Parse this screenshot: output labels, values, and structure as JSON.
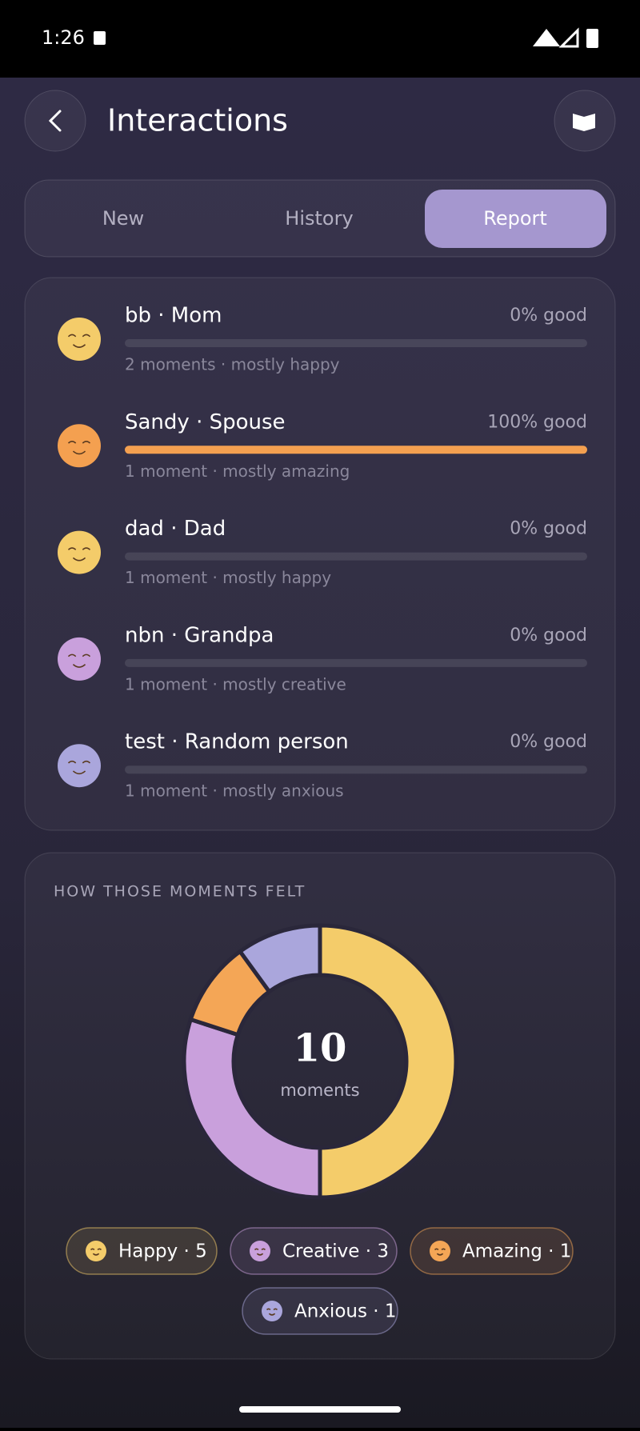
{
  "status_bar": {
    "time": "1:26"
  },
  "header": {
    "title": "Interactions"
  },
  "tabs": [
    "New",
    "History",
    "Report"
  ],
  "rows": [
    {
      "title": "bb · Mom",
      "good": 0,
      "good_label": "0% good",
      "subtitle": "2 moments · mostly happy",
      "color": "#f4cc6a"
    },
    {
      "title": "Sandy · Spouse",
      "good": 100,
      "good_label": "100% good",
      "subtitle": "1 moment · mostly amazing",
      "color": "#f4a050"
    },
    {
      "title": "dad · Dad",
      "good": 0,
      "good_label": "0% good",
      "subtitle": "1 moment · mostly happy",
      "color": "#f4cc6a"
    },
    {
      "title": "nbn · Grandpa",
      "good": 0,
      "good_label": "0% good",
      "subtitle": "1 moment · mostly creative",
      "color": "#c9a0dc"
    },
    {
      "title": "test · Random person",
      "good": 0,
      "good_label": "0% good",
      "subtitle": "1 moment · mostly anxious",
      "color": "#aaa6dc"
    }
  ],
  "chart_data": {
    "type": "pie",
    "title": "HOW THOSE MOMENTS FELT",
    "center_value": "10",
    "center_label": "moments",
    "categories": [
      "Happy",
      "Creative",
      "Amazing",
      "Anxious"
    ],
    "values": [
      5,
      3,
      1,
      1
    ],
    "value_labels": [
      "Happy · 5",
      "Creative · 3",
      "Amazing · 1",
      "Anxious · 1"
    ],
    "colors": [
      "#f4cc6a",
      "#c9a0dc",
      "#f4a656",
      "#aaa6dc"
    ]
  }
}
